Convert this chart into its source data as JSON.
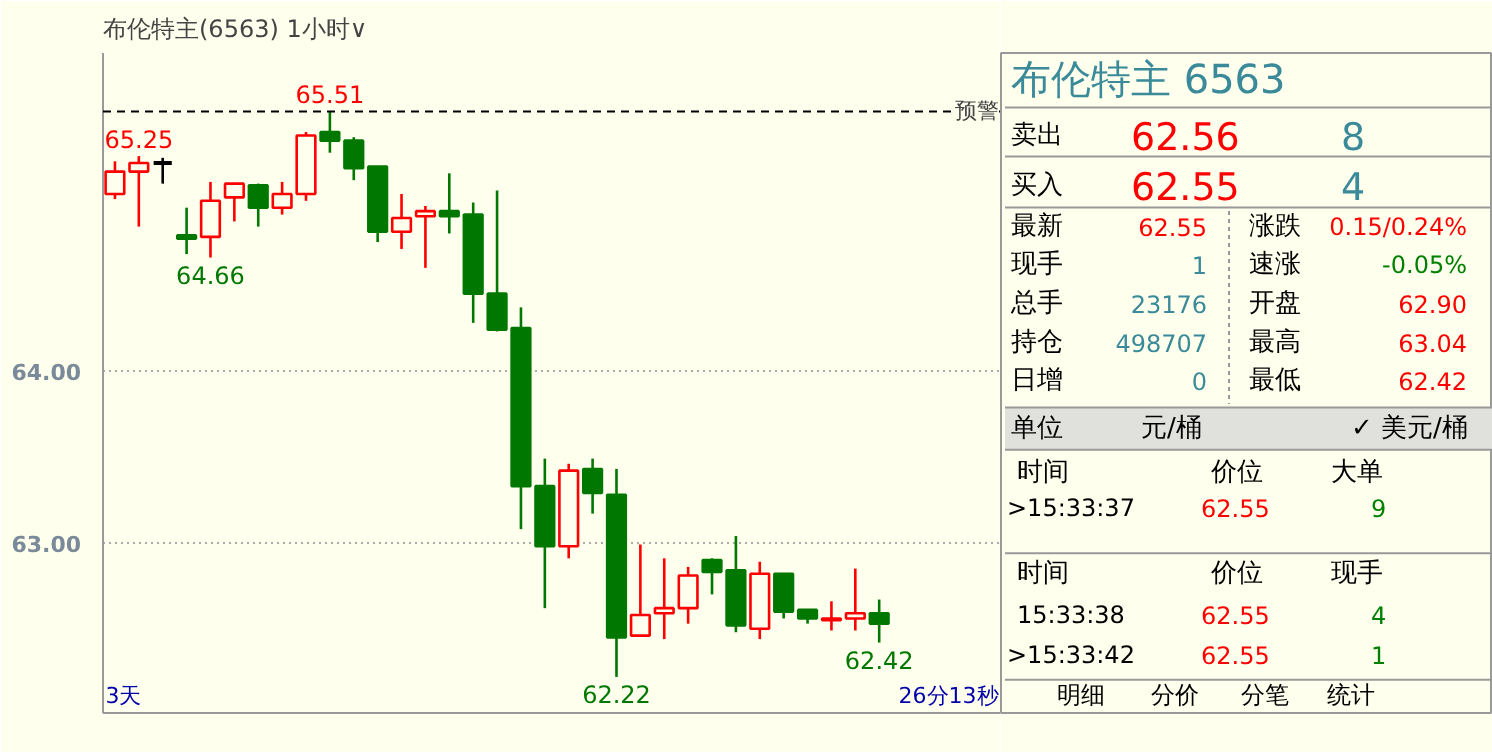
{
  "chart_data": [
    {
      "type": "candlestick",
      "title": "布伦特主(6563)",
      "subtitle": "1小时∨",
      "categories": [
        null,
        null,
        null,
        null,
        null,
        null,
        null,
        null,
        null,
        null,
        null,
        null,
        null,
        null,
        null,
        null,
        null,
        null,
        null,
        null,
        null,
        null,
        null,
        null,
        null,
        null,
        null,
        null,
        null,
        null,
        null,
        null,
        null
      ],
      "ohlc": [
        [
          65.03,
          65.22,
          65.0,
          65.16
        ],
        [
          65.16,
          65.25,
          64.84,
          65.21
        ],
        [
          65.21,
          65.24,
          65.09,
          65.21
        ],
        [
          64.79,
          64.95,
          64.68,
          64.77
        ],
        [
          64.78,
          65.1,
          64.66,
          64.99
        ],
        [
          65.01,
          65.09,
          64.87,
          65.09
        ],
        [
          65.08,
          65.09,
          64.84,
          64.95
        ],
        [
          64.95,
          65.1,
          64.91,
          65.03
        ],
        [
          65.03,
          65.39,
          64.99,
          65.37
        ],
        [
          65.39,
          65.51,
          65.27,
          65.34
        ],
        [
          65.34,
          65.36,
          65.11,
          65.18
        ],
        [
          65.19,
          65.19,
          64.75,
          64.81
        ],
        [
          64.81,
          65.03,
          64.71,
          64.89
        ],
        [
          64.9,
          64.96,
          64.6,
          64.93
        ],
        [
          64.93,
          65.15,
          64.8,
          64.9
        ],
        [
          64.91,
          64.98,
          64.28,
          64.45
        ],
        [
          64.45,
          65.05,
          64.23,
          64.24
        ],
        [
          64.25,
          64.37,
          63.08,
          63.33
        ],
        [
          63.33,
          63.49,
          62.62,
          62.98
        ],
        [
          62.98,
          63.46,
          62.91,
          63.42
        ],
        [
          63.43,
          63.49,
          63.17,
          63.29
        ],
        [
          63.28,
          63.43,
          62.22,
          62.45
        ],
        [
          62.46,
          62.99,
          62.46,
          62.58
        ],
        [
          62.59,
          62.91,
          62.44,
          62.62
        ],
        [
          62.62,
          62.86,
          62.53,
          62.81
        ],
        [
          62.9,
          62.91,
          62.7,
          62.83
        ],
        [
          62.84,
          63.04,
          62.48,
          62.52
        ],
        [
          62.5,
          62.89,
          62.44,
          62.82
        ],
        [
          62.82,
          62.82,
          62.56,
          62.6
        ],
        [
          62.61,
          62.61,
          62.53,
          62.56
        ],
        [
          62.55,
          62.66,
          62.49,
          62.56
        ],
        [
          62.56,
          62.85,
          62.49,
          62.59
        ],
        [
          62.59,
          62.67,
          62.42,
          62.53
        ]
      ],
      "colors": [
        "#ff0000",
        "#ff0000",
        "#000000",
        "#007800",
        "#ff0000",
        "#ff0000",
        "#007800",
        "#ff0000",
        "#ff0000",
        "#007800",
        "#007800",
        "#007800",
        "#ff0000",
        "#ff0000",
        "#007800",
        "#007800",
        "#007800",
        "#007800",
        "#007800",
        "#ff0000",
        "#007800",
        "#007800",
        "#ff0000",
        "#ff0000",
        "#ff0000",
        "#007800",
        "#007800",
        "#ff0000",
        "#007800",
        "#007800",
        "#ff0000",
        "#ff0000",
        "#007800"
      ],
      "ylim": [
        62.01,
        65.85
      ],
      "yticks": [
        {
          "value": 63,
          "label": "63.00"
        },
        {
          "value": 64,
          "label": "64.00"
        }
      ],
      "grid": "y",
      "tick_labels": "y",
      "ref_lines": [
        {
          "axis": "y",
          "value": 65.51,
          "label": "预警",
          "color": "#000000",
          "line_style": "dashed"
        }
      ],
      "annotations": [
        {
          "text": "65.25",
          "y": 65.25
        },
        {
          "text": "65.51",
          "y": 65.51
        },
        {
          "text": "64.66",
          "y": 64.66
        },
        {
          "text": "62.22",
          "y": 62.22
        },
        {
          "text": "62.42",
          "y": 62.42
        },
        "3天",
        "26分13秒"
      ]
    },
    {
      "type": "other",
      "title": "布伦特主  6563",
      "annotations": [
        "卖出",
        "62.56",
        "8",
        "买入",
        "62.55",
        "4",
        "最新",
        "62.55",
        "涨跌",
        "0.15/0.24%",
        "现手",
        "1",
        "速涨",
        "-0.05%",
        "总手",
        "23176",
        "开盘",
        "62.90",
        "持仓",
        "498707",
        "最高",
        "63.04",
        "日增",
        "0",
        "最低",
        "62.42",
        "单位",
        "元/桶",
        "✓ 美元/桶",
        "时间",
        "价位",
        "大单",
        ">15:33:37",
        "62.55",
        "9",
        "时间",
        "价位",
        "现手",
        "15:33:38",
        "62.55",
        "4",
        ">15:33:42",
        "62.55",
        "1",
        "明细",
        "分价",
        "分笔",
        "统计"
      ]
    }
  ]
}
